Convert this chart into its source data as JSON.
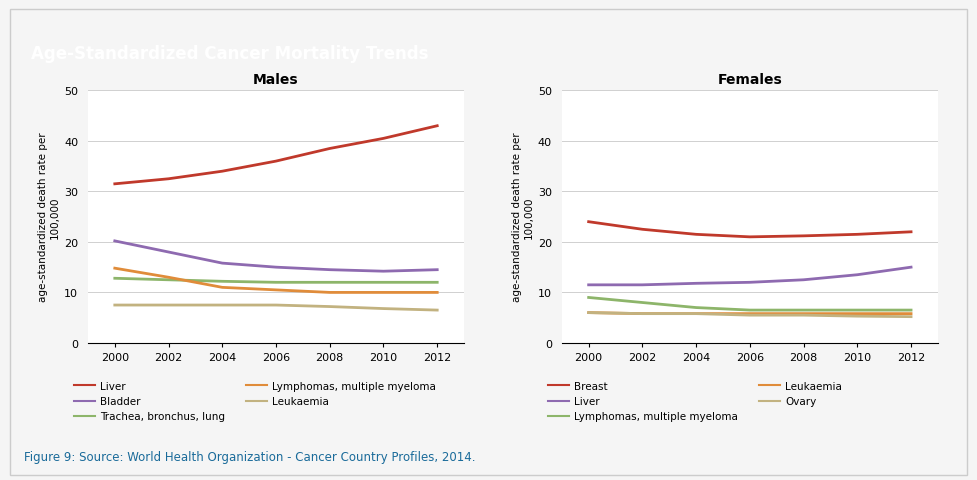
{
  "title": "Age-Standardized Cancer Mortality Trends",
  "title_bg": "#9b8ec4",
  "title_text_color": "white",
  "figure_bg": "#f5f5f5",
  "plot_bg": "white",
  "border_color": "#cccccc",
  "caption": "Figure 9: Source: World Health Organization - Cancer Country Profiles, 2014.",
  "years": [
    2000,
    2002,
    2004,
    2006,
    2008,
    2010,
    2012
  ],
  "males": {
    "title": "Males",
    "ylabel": "age-standardized death rate per\n100,000",
    "ylim": [
      0,
      50
    ],
    "yticks": [
      0,
      10,
      20,
      30,
      40,
      50
    ],
    "series": [
      {
        "label": "Liver",
        "color": "#c0392b",
        "data": [
          31.5,
          32.5,
          34.0,
          36.0,
          38.5,
          40.5,
          43.0
        ]
      },
      {
        "label": "Bladder",
        "color": "#8e6ab0",
        "data": [
          20.2,
          18.0,
          15.8,
          15.0,
          14.5,
          14.2,
          14.5
        ]
      },
      {
        "label": "Trachea, bronchus, lung",
        "color": "#8db56a",
        "data": [
          12.8,
          12.5,
          12.2,
          12.0,
          12.0,
          12.0,
          12.0
        ]
      },
      {
        "label": "Lymphomas, multiple myeloma",
        "color": "#e08c3a",
        "data": [
          14.8,
          13.0,
          11.0,
          10.5,
          10.0,
          10.0,
          10.0
        ]
      },
      {
        "label": "Leukaemia",
        "color": "#c2b280",
        "data": [
          7.5,
          7.5,
          7.5,
          7.5,
          7.2,
          6.8,
          6.5
        ]
      }
    ]
  },
  "females": {
    "title": "Females",
    "ylabel": "age-standardized death rate per\n100,000",
    "ylim": [
      0,
      50
    ],
    "yticks": [
      0,
      10,
      20,
      30,
      40,
      50
    ],
    "series": [
      {
        "label": "Breast",
        "color": "#c0392b",
        "data": [
          24.0,
          22.5,
          21.5,
          21.0,
          21.2,
          21.5,
          22.0
        ]
      },
      {
        "label": "Liver",
        "color": "#8e6ab0",
        "data": [
          11.5,
          11.5,
          11.8,
          12.0,
          12.5,
          13.5,
          15.0
        ]
      },
      {
        "label": "Lymphomas, multiple myeloma",
        "color": "#8db56a",
        "data": [
          9.0,
          8.0,
          7.0,
          6.5,
          6.5,
          6.5,
          6.5
        ]
      },
      {
        "label": "Leukaemia",
        "color": "#e08c3a",
        "data": [
          6.0,
          5.8,
          5.8,
          5.8,
          5.8,
          5.8,
          5.8
        ]
      },
      {
        "label": "Ovary",
        "color": "#c2b280",
        "data": [
          6.0,
          5.8,
          5.8,
          5.5,
          5.5,
          5.3,
          5.2
        ]
      }
    ]
  },
  "line_width": 2.0,
  "axis_label_fontsize": 7.5,
  "title_fontsize": 12,
  "tick_fontsize": 8,
  "legend_fontsize": 7.5,
  "subplot_title_fontsize": 10,
  "caption_fontsize": 8.5,
  "caption_color": "#1a6b9a"
}
